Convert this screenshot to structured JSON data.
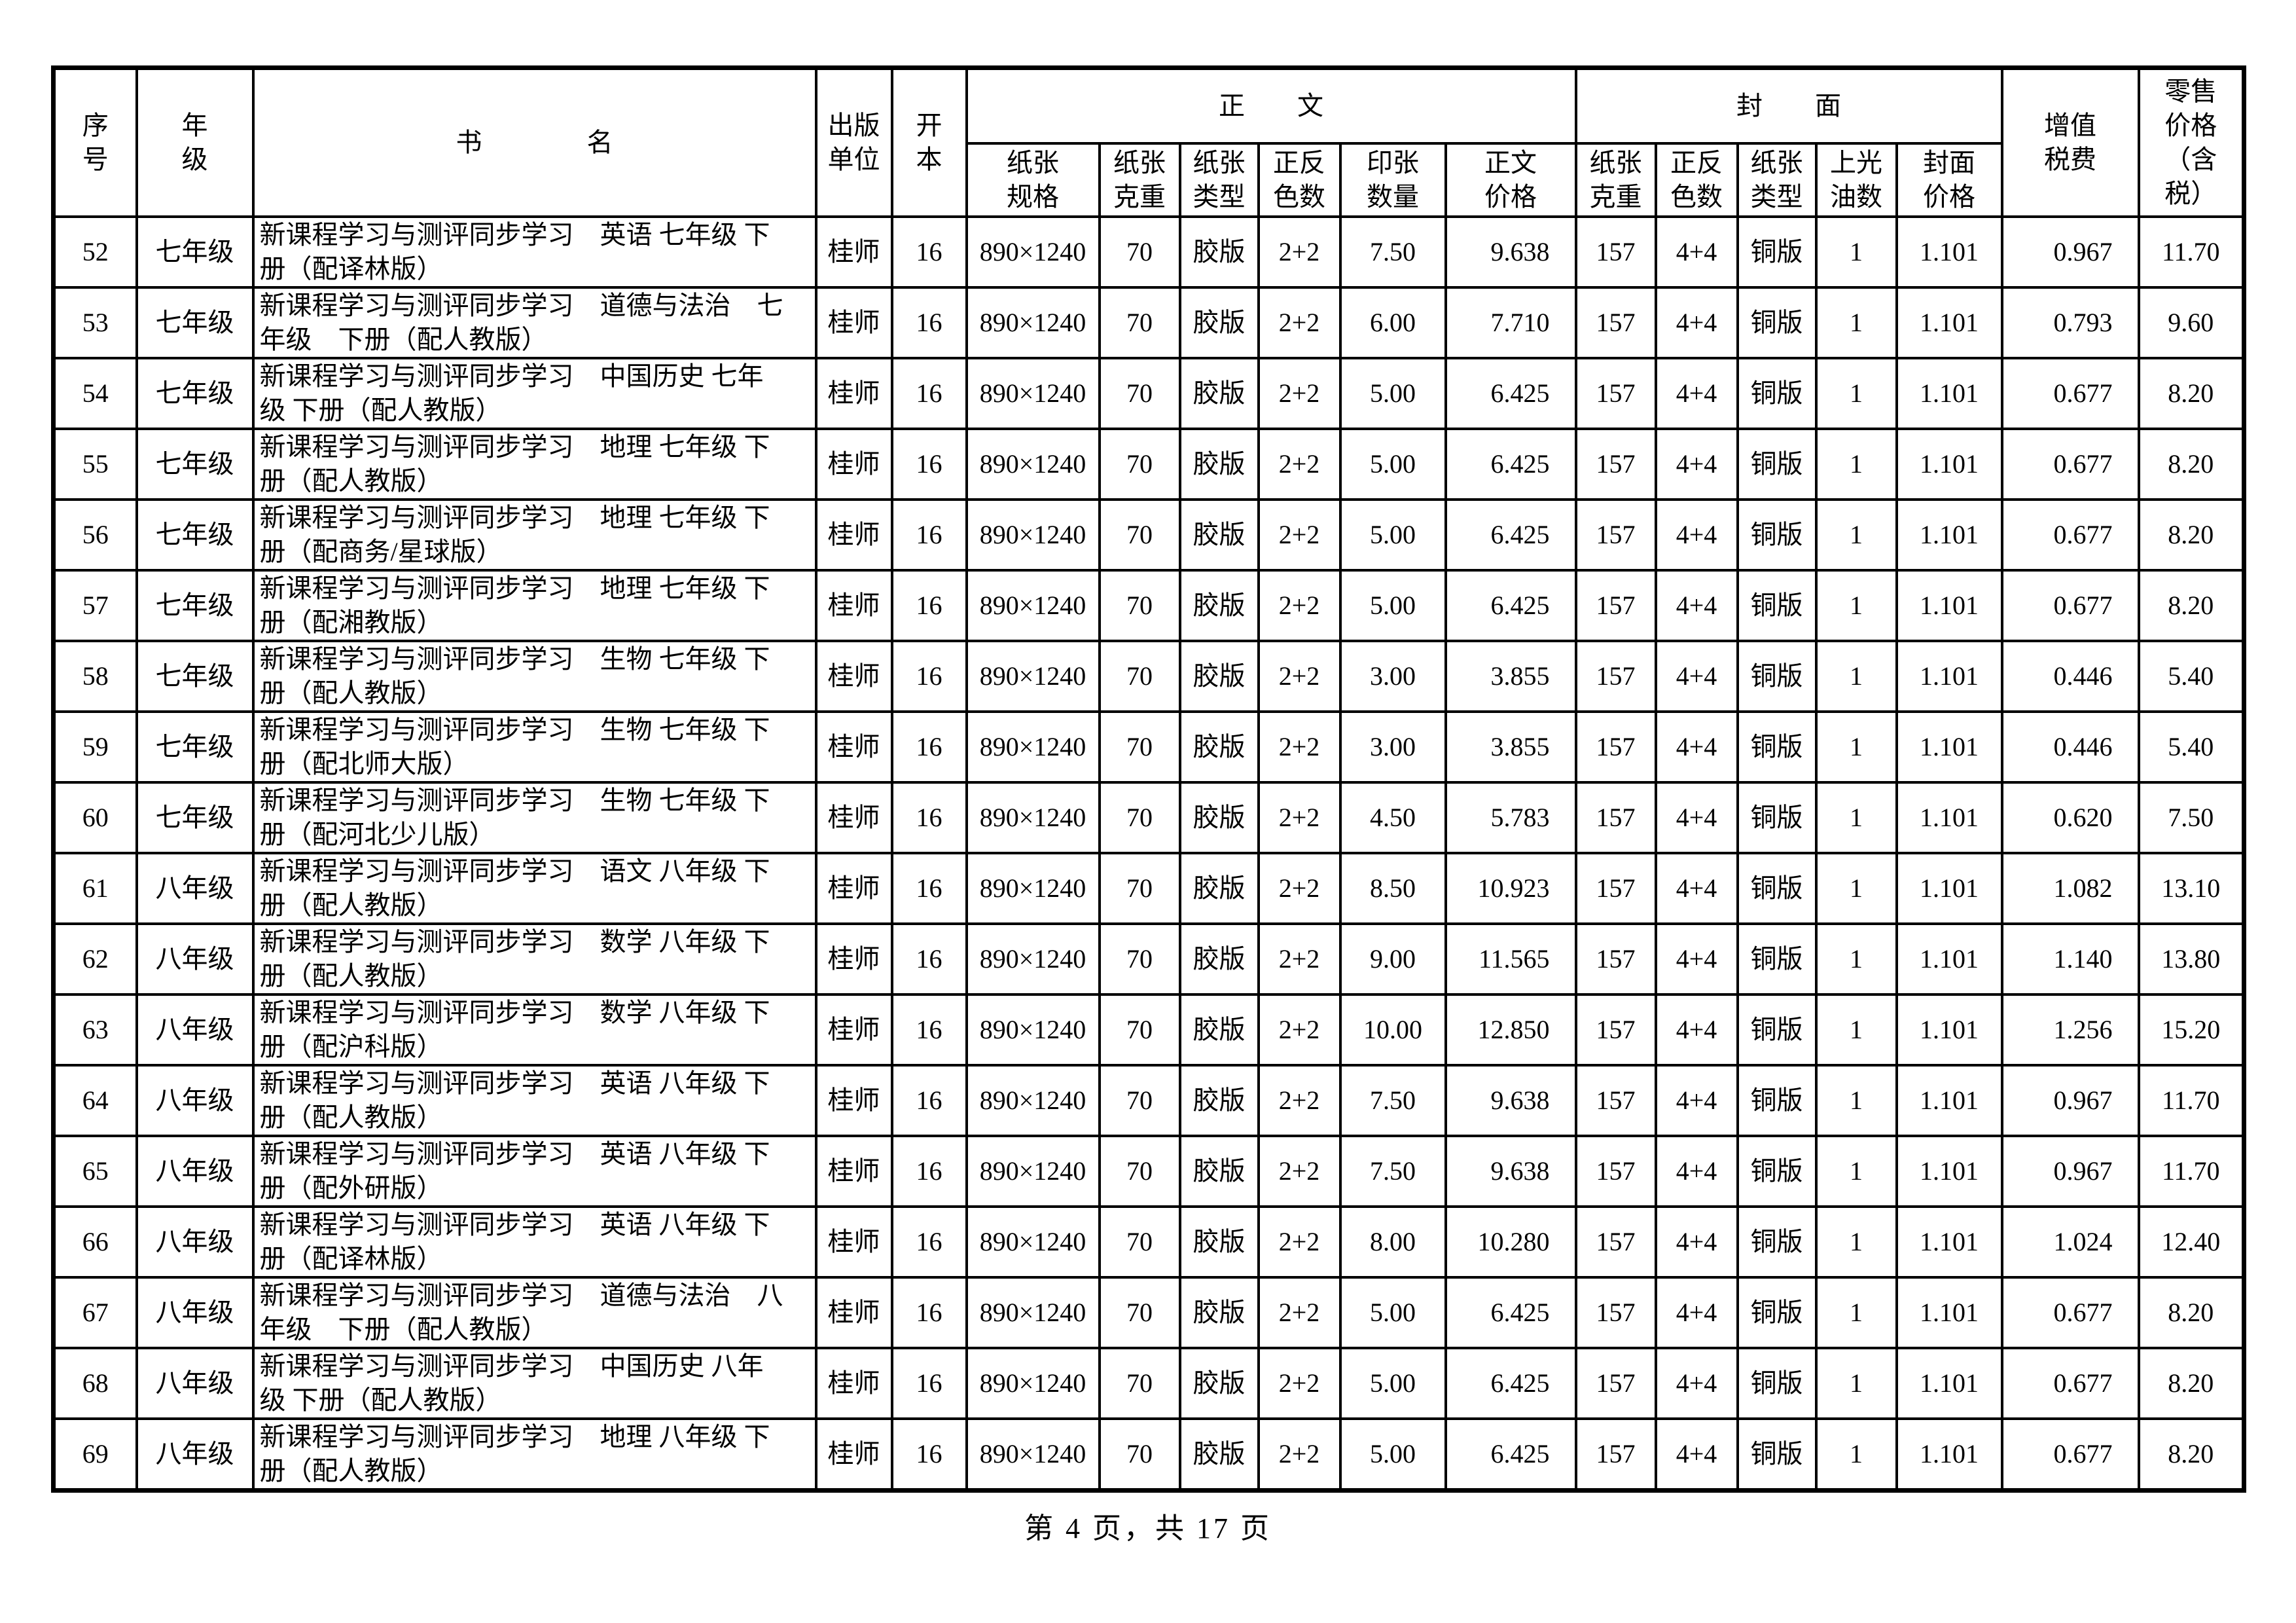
{
  "page": {
    "background": "#ffffff",
    "footer": "第 4 页，共 17 页"
  },
  "table": {
    "headers": {
      "serial": "序\n号",
      "grade": "年\n级",
      "book_name": "书　　　　名",
      "publisher": "出版\n单位",
      "format": "开\n本",
      "text_group": "正　　文",
      "cover_group": "封　　面",
      "vat": "增值\n税费",
      "retail": "零售\n价格\n（含\n税）",
      "text_sub": [
        "纸张\n规格",
        "纸张\n克重",
        "纸张\n类型",
        "正反\n色数",
        "印张\n数量",
        "正文\n价格"
      ],
      "cover_sub": [
        "纸张\n克重",
        "正反\n色数",
        "纸张\n类型",
        "上光\n油数",
        "封面\n价格"
      ]
    },
    "rows": [
      [
        "52",
        "七年级",
        "新课程学习与测评同步学习　英语 七年级 下\n册（配译林版）",
        "桂师",
        "16",
        "890×1240",
        "70",
        "胶版",
        "2+2",
        "7.50",
        "9.638",
        "157",
        "4+4",
        "铜版",
        "1",
        "1.101",
        "0.967",
        "11.70"
      ],
      [
        "53",
        "七年级",
        "新课程学习与测评同步学习　道德与法治　七\n年级　下册（配人教版）",
        "桂师",
        "16",
        "890×1240",
        "70",
        "胶版",
        "2+2",
        "6.00",
        "7.710",
        "157",
        "4+4",
        "铜版",
        "1",
        "1.101",
        "0.793",
        "9.60"
      ],
      [
        "54",
        "七年级",
        "新课程学习与测评同步学习　中国历史 七年\n级 下册（配人教版）",
        "桂师",
        "16",
        "890×1240",
        "70",
        "胶版",
        "2+2",
        "5.00",
        "6.425",
        "157",
        "4+4",
        "铜版",
        "1",
        "1.101",
        "0.677",
        "8.20"
      ],
      [
        "55",
        "七年级",
        "新课程学习与测评同步学习　地理 七年级 下\n册（配人教版）",
        "桂师",
        "16",
        "890×1240",
        "70",
        "胶版",
        "2+2",
        "5.00",
        "6.425",
        "157",
        "4+4",
        "铜版",
        "1",
        "1.101",
        "0.677",
        "8.20"
      ],
      [
        "56",
        "七年级",
        "新课程学习与测评同步学习　地理 七年级 下\n册（配商务/星球版）",
        "桂师",
        "16",
        "890×1240",
        "70",
        "胶版",
        "2+2",
        "5.00",
        "6.425",
        "157",
        "4+4",
        "铜版",
        "1",
        "1.101",
        "0.677",
        "8.20"
      ],
      [
        "57",
        "七年级",
        "新课程学习与测评同步学习　地理 七年级 下\n册（配湘教版）",
        "桂师",
        "16",
        "890×1240",
        "70",
        "胶版",
        "2+2",
        "5.00",
        "6.425",
        "157",
        "4+4",
        "铜版",
        "1",
        "1.101",
        "0.677",
        "8.20"
      ],
      [
        "58",
        "七年级",
        "新课程学习与测评同步学习　生物 七年级 下\n册（配人教版）",
        "桂师",
        "16",
        "890×1240",
        "70",
        "胶版",
        "2+2",
        "3.00",
        "3.855",
        "157",
        "4+4",
        "铜版",
        "1",
        "1.101",
        "0.446",
        "5.40"
      ],
      [
        "59",
        "七年级",
        "新课程学习与测评同步学习　生物 七年级 下\n册（配北师大版）",
        "桂师",
        "16",
        "890×1240",
        "70",
        "胶版",
        "2+2",
        "3.00",
        "3.855",
        "157",
        "4+4",
        "铜版",
        "1",
        "1.101",
        "0.446",
        "5.40"
      ],
      [
        "60",
        "七年级",
        "新课程学习与测评同步学习　生物 七年级 下\n册（配河北少儿版）",
        "桂师",
        "16",
        "890×1240",
        "70",
        "胶版",
        "2+2",
        "4.50",
        "5.783",
        "157",
        "4+4",
        "铜版",
        "1",
        "1.101",
        "0.620",
        "7.50"
      ],
      [
        "61",
        "八年级",
        "新课程学习与测评同步学习　语文 八年级 下\n册（配人教版）",
        "桂师",
        "16",
        "890×1240",
        "70",
        "胶版",
        "2+2",
        "8.50",
        "10.923",
        "157",
        "4+4",
        "铜版",
        "1",
        "1.101",
        "1.082",
        "13.10"
      ],
      [
        "62",
        "八年级",
        "新课程学习与测评同步学习　数学 八年级 下\n册（配人教版）",
        "桂师",
        "16",
        "890×1240",
        "70",
        "胶版",
        "2+2",
        "9.00",
        "11.565",
        "157",
        "4+4",
        "铜版",
        "1",
        "1.101",
        "1.140",
        "13.80"
      ],
      [
        "63",
        "八年级",
        "新课程学习与测评同步学习　数学 八年级 下\n册（配沪科版）",
        "桂师",
        "16",
        "890×1240",
        "70",
        "胶版",
        "2+2",
        "10.00",
        "12.850",
        "157",
        "4+4",
        "铜版",
        "1",
        "1.101",
        "1.256",
        "15.20"
      ],
      [
        "64",
        "八年级",
        "新课程学习与测评同步学习　英语 八年级 下\n册（配人教版）",
        "桂师",
        "16",
        "890×1240",
        "70",
        "胶版",
        "2+2",
        "7.50",
        "9.638",
        "157",
        "4+4",
        "铜版",
        "1",
        "1.101",
        "0.967",
        "11.70"
      ],
      [
        "65",
        "八年级",
        "新课程学习与测评同步学习　英语 八年级 下\n册（配外研版）",
        "桂师",
        "16",
        "890×1240",
        "70",
        "胶版",
        "2+2",
        "7.50",
        "9.638",
        "157",
        "4+4",
        "铜版",
        "1",
        "1.101",
        "0.967",
        "11.70"
      ],
      [
        "66",
        "八年级",
        "新课程学习与测评同步学习　英语 八年级 下\n册（配译林版）",
        "桂师",
        "16",
        "890×1240",
        "70",
        "胶版",
        "2+2",
        "8.00",
        "10.280",
        "157",
        "4+4",
        "铜版",
        "1",
        "1.101",
        "1.024",
        "12.40"
      ],
      [
        "67",
        "八年级",
        "新课程学习与测评同步学习　道德与法治　八\n年级　下册（配人教版）",
        "桂师",
        "16",
        "890×1240",
        "70",
        "胶版",
        "2+2",
        "5.00",
        "6.425",
        "157",
        "4+4",
        "铜版",
        "1",
        "1.101",
        "0.677",
        "8.20"
      ],
      [
        "68",
        "八年级",
        "新课程学习与测评同步学习　中国历史 八年\n级 下册（配人教版）",
        "桂师",
        "16",
        "890×1240",
        "70",
        "胶版",
        "2+2",
        "5.00",
        "6.425",
        "157",
        "4+4",
        "铜版",
        "1",
        "1.101",
        "0.677",
        "8.20"
      ],
      [
        "69",
        "八年级",
        "新课程学习与测评同步学习　地理 八年级 下\n册（配人教版）",
        "桂师",
        "16",
        "890×1240",
        "70",
        "胶版",
        "2+2",
        "5.00",
        "6.425",
        "157",
        "4+4",
        "铜版",
        "1",
        "1.101",
        "0.677",
        "8.20"
      ]
    ]
  }
}
